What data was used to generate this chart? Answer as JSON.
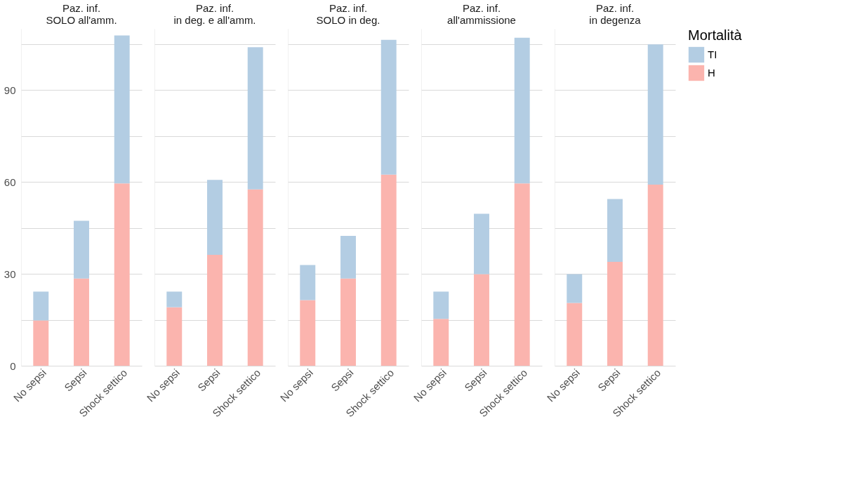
{
  "chart_data": [
    {
      "type": "bar",
      "title": "Paz. inf.\nSOLO all'amm.",
      "categories": [
        "No sepsi",
        "Sepsi",
        "Shock settico"
      ],
      "stacked": true,
      "ylim": [
        0,
        110
      ],
      "yticks": [
        0,
        {
          "value": 15,
          "label": null
        },
        30,
        {
          "value": 45,
          "label": null
        },
        60,
        {
          "value": 75,
          "label": null
        },
        90,
        {
          "value": 105,
          "label": null
        }
      ],
      "grid": "y",
      "legend": false,
      "series": [
        {
          "color": "#fbb4ae",
          "values": [
            14.8,
            28.5,
            59.5
          ]
        },
        {
          "color": "#b3cde3",
          "values": [
            9.4,
            18.8,
            48.3
          ]
        }
      ]
    },
    {
      "type": "bar",
      "title": "Paz. inf.\nin deg. e all'amm.",
      "categories": [
        "No sepsi",
        "Sepsi",
        "Shock settico"
      ],
      "stacked": true,
      "ylim": [
        0,
        110
      ],
      "yticks": [
        0,
        {
          "value": 15,
          "label": null
        },
        30,
        {
          "value": 45,
          "label": null
        },
        60,
        {
          "value": 75,
          "label": null
        },
        90,
        {
          "value": 105,
          "label": null
        }
      ],
      "grid": "y",
      "legend": false,
      "tick_labels": "x",
      "series": [
        {
          "color": "#fbb4ae",
          "values": [
            19.1,
            36.2,
            57.6
          ]
        },
        {
          "color": "#b3cde3",
          "values": [
            5.1,
            24.5,
            46.4
          ]
        }
      ]
    },
    {
      "type": "bar",
      "title": "Paz. inf.\nSOLO in deg.",
      "categories": [
        "No sepsi",
        "Sepsi",
        "Shock settico"
      ],
      "stacked": true,
      "ylim": [
        0,
        110
      ],
      "yticks": [
        0,
        {
          "value": 15,
          "label": null
        },
        30,
        {
          "value": 45,
          "label": null
        },
        60,
        {
          "value": 75,
          "label": null
        },
        90,
        {
          "value": 105,
          "label": null
        }
      ],
      "grid": "y",
      "legend": false,
      "tick_labels": "x",
      "series": [
        {
          "color": "#fbb4ae",
          "values": [
            21.4,
            28.5,
            62.4
          ]
        },
        {
          "color": "#b3cde3",
          "values": [
            11.5,
            13.9,
            44.0
          ]
        }
      ]
    },
    {
      "type": "bar",
      "title": "Paz. inf.\nall'ammissione",
      "categories": [
        "No sepsi",
        "Sepsi",
        "Shock settico"
      ],
      "stacked": true,
      "ylim": [
        0,
        110
      ],
      "yticks": [
        0,
        {
          "value": 15,
          "label": null
        },
        30,
        {
          "value": 45,
          "label": null
        },
        60,
        {
          "value": 75,
          "label": null
        },
        90,
        {
          "value": 105,
          "label": null
        }
      ],
      "grid": "y",
      "legend": false,
      "tick_labels": "x",
      "series": [
        {
          "color": "#fbb4ae",
          "values": [
            15.3,
            29.9,
            59.5
          ]
        },
        {
          "color": "#b3cde3",
          "values": [
            8.9,
            19.7,
            47.6
          ]
        }
      ]
    },
    {
      "type": "bar",
      "title": "Paz. inf.\nin degenza",
      "categories": [
        "No sepsi",
        "Sepsi",
        "Shock settico"
      ],
      "stacked": true,
      "ylim": [
        0,
        110
      ],
      "yticks": [
        0,
        {
          "value": 15,
          "label": null
        },
        30,
        {
          "value": 45,
          "label": null
        },
        60,
        {
          "value": 75,
          "label": null
        },
        90,
        {
          "value": 105,
          "label": null
        }
      ],
      "grid": "y",
      "legend": "right",
      "legend_title": "Mortalità",
      "tick_labels": "x",
      "series": [
        {
          "name": "H",
          "color": "#fbb4ae",
          "values": [
            20.5,
            33.9,
            59.1
          ]
        },
        {
          "name": "TI",
          "color": "#b3cde3",
          "values": [
            9.4,
            20.5,
            45.8
          ]
        }
      ]
    }
  ]
}
